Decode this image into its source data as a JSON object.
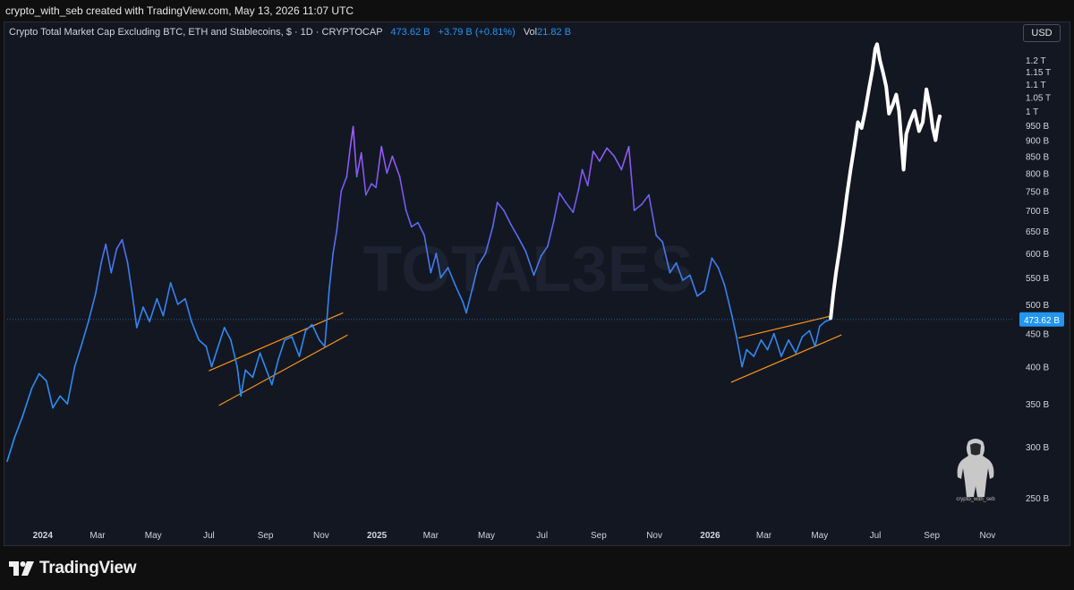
{
  "header": {
    "credit": "crypto_with_seb created with TradingView.com, May 13, 2026 11:07 UTC"
  },
  "legend": {
    "symbol": "Crypto Total Market Cap Excluding BTC, ETH and Stablecoins, $ · 1D · CRYPTOCAP",
    "last": "473.62 B",
    "change": "+3.79 B (+0.81%)",
    "vol_label": "Vol",
    "vol_value": "21.82 B"
  },
  "currency_button": "USD",
  "watermark": "TOTAL3ES",
  "avatar_caption": "crypto_with_seb",
  "footer": {
    "brand": "TradingView"
  },
  "colors": {
    "background": "#131722",
    "line": "#2196f3",
    "line_peak": "#9b59ff",
    "projection": "#ffffff",
    "channel": "#f7931a",
    "accent_label": "#2196f3"
  },
  "chart_data": {
    "type": "line",
    "title": "Crypto Total Market Cap Excluding BTC, ETH and Stablecoins",
    "xlabel": "",
    "ylabel": "",
    "y_scale": "log",
    "ylim": [
      230,
      1300
    ],
    "xlim": [
      "2023-11-23",
      "2026-11-30"
    ],
    "grid": false,
    "x_ticks": [
      {
        "date": "2024-01-01",
        "label": "2024",
        "bold": true
      },
      {
        "date": "2024-03-01",
        "label": "Mar"
      },
      {
        "date": "2024-05-01",
        "label": "May"
      },
      {
        "date": "2024-07-01",
        "label": "Jul"
      },
      {
        "date": "2024-09-01",
        "label": "Sep"
      },
      {
        "date": "2024-11-01",
        "label": "Nov"
      },
      {
        "date": "2025-01-01",
        "label": "2025",
        "bold": true
      },
      {
        "date": "2025-03-01",
        "label": "Mar"
      },
      {
        "date": "2025-05-01",
        "label": "May"
      },
      {
        "date": "2025-07-01",
        "label": "Jul"
      },
      {
        "date": "2025-09-01",
        "label": "Sep"
      },
      {
        "date": "2025-11-01",
        "label": "Nov"
      },
      {
        "date": "2026-01-01",
        "label": "2026",
        "bold": true
      },
      {
        "date": "2026-03-01",
        "label": "Mar"
      },
      {
        "date": "2026-05-01",
        "label": "May"
      },
      {
        "date": "2026-07-01",
        "label": "Jul"
      },
      {
        "date": "2026-09-01",
        "label": "Sep"
      },
      {
        "date": "2026-11-01",
        "label": "Nov"
      }
    ],
    "y_ticks": [
      {
        "value": 250,
        "label": "250 B"
      },
      {
        "value": 300,
        "label": "300 B"
      },
      {
        "value": 350,
        "label": "350 B"
      },
      {
        "value": 400,
        "label": "400 B"
      },
      {
        "value": 450,
        "label": "450 B"
      },
      {
        "value": 500,
        "label": "500 B"
      },
      {
        "value": 550,
        "label": "550 B"
      },
      {
        "value": 600,
        "label": "600 B"
      },
      {
        "value": 650,
        "label": "650 B"
      },
      {
        "value": 700,
        "label": "700 B"
      },
      {
        "value": 750,
        "label": "750 B"
      },
      {
        "value": 800,
        "label": "800 B"
      },
      {
        "value": 850,
        "label": "850 B"
      },
      {
        "value": 900,
        "label": "900 B"
      },
      {
        "value": 950,
        "label": "950 B"
      },
      {
        "value": 1000,
        "label": "1 T"
      },
      {
        "value": 1050,
        "label": "1.05 T"
      },
      {
        "value": 1100,
        "label": "1.1 T"
      },
      {
        "value": 1150,
        "label": "1.15 T"
      },
      {
        "value": 1200,
        "label": "1.2 T"
      }
    ],
    "last_price": {
      "value": 473.62,
      "label": "473.62 B"
    },
    "series": [
      {
        "role": "history",
        "points": [
          [
            "2023-11-23",
            285
          ],
          [
            "2023-12-01",
            310
          ],
          [
            "2023-12-10",
            335
          ],
          [
            "2023-12-20",
            370
          ],
          [
            "2023-12-28",
            390
          ],
          [
            "2024-01-05",
            380
          ],
          [
            "2024-01-12",
            345
          ],
          [
            "2024-01-20",
            360
          ],
          [
            "2024-01-28",
            350
          ],
          [
            "2024-02-05",
            400
          ],
          [
            "2024-02-12",
            430
          ],
          [
            "2024-02-20",
            470
          ],
          [
            "2024-02-28",
            520
          ],
          [
            "2024-03-05",
            580
          ],
          [
            "2024-03-10",
            620
          ],
          [
            "2024-03-16",
            560
          ],
          [
            "2024-03-22",
            610
          ],
          [
            "2024-03-28",
            630
          ],
          [
            "2024-04-03",
            580
          ],
          [
            "2024-04-08",
            520
          ],
          [
            "2024-04-13",
            460
          ],
          [
            "2024-04-20",
            495
          ],
          [
            "2024-04-27",
            470
          ],
          [
            "2024-05-05",
            510
          ],
          [
            "2024-05-12",
            480
          ],
          [
            "2024-05-20",
            540
          ],
          [
            "2024-05-28",
            500
          ],
          [
            "2024-06-05",
            510
          ],
          [
            "2024-06-12",
            470
          ],
          [
            "2024-06-20",
            440
          ],
          [
            "2024-06-28",
            430
          ],
          [
            "2024-07-04",
            400
          ],
          [
            "2024-07-10",
            425
          ],
          [
            "2024-07-18",
            460
          ],
          [
            "2024-07-25",
            440
          ],
          [
            "2024-08-01",
            400
          ],
          [
            "2024-08-05",
            360
          ],
          [
            "2024-08-10",
            395
          ],
          [
            "2024-08-18",
            385
          ],
          [
            "2024-08-26",
            420
          ],
          [
            "2024-09-02",
            395
          ],
          [
            "2024-09-08",
            375
          ],
          [
            "2024-09-15",
            410
          ],
          [
            "2024-09-22",
            440
          ],
          [
            "2024-09-30",
            445
          ],
          [
            "2024-10-08",
            415
          ],
          [
            "2024-10-15",
            455
          ],
          [
            "2024-10-22",
            465
          ],
          [
            "2024-10-30",
            440
          ],
          [
            "2024-11-05",
            430
          ],
          [
            "2024-11-10",
            530
          ],
          [
            "2024-11-14",
            600
          ],
          [
            "2024-11-18",
            650
          ],
          [
            "2024-11-23",
            750
          ],
          [
            "2024-11-29",
            790
          ],
          [
            "2024-12-03",
            880
          ],
          [
            "2024-12-06",
            945
          ],
          [
            "2024-12-10",
            790
          ],
          [
            "2024-12-15",
            860
          ],
          [
            "2024-12-20",
            740
          ],
          [
            "2024-12-26",
            770
          ],
          [
            "2024-12-31",
            760
          ],
          [
            "2025-01-06",
            880
          ],
          [
            "2025-01-12",
            800
          ],
          [
            "2025-01-18",
            850
          ],
          [
            "2025-01-26",
            790
          ],
          [
            "2025-02-02",
            700
          ],
          [
            "2025-02-08",
            660
          ],
          [
            "2025-02-15",
            670
          ],
          [
            "2025-02-22",
            640
          ],
          [
            "2025-03-01",
            560
          ],
          [
            "2025-03-07",
            600
          ],
          [
            "2025-03-12",
            550
          ],
          [
            "2025-03-20",
            570
          ],
          [
            "2025-03-28",
            535
          ],
          [
            "2025-04-05",
            505
          ],
          [
            "2025-04-09",
            485
          ],
          [
            "2025-04-15",
            525
          ],
          [
            "2025-04-22",
            575
          ],
          [
            "2025-04-30",
            600
          ],
          [
            "2025-05-08",
            660
          ],
          [
            "2025-05-13",
            720
          ],
          [
            "2025-05-20",
            700
          ],
          [
            "2025-05-28",
            665
          ],
          [
            "2025-06-05",
            635
          ],
          [
            "2025-06-13",
            605
          ],
          [
            "2025-06-22",
            555
          ],
          [
            "2025-06-30",
            595
          ],
          [
            "2025-07-07",
            615
          ],
          [
            "2025-07-14",
            675
          ],
          [
            "2025-07-20",
            745
          ],
          [
            "2025-07-27",
            720
          ],
          [
            "2025-08-04",
            695
          ],
          [
            "2025-08-10",
            755
          ],
          [
            "2025-08-14",
            810
          ],
          [
            "2025-08-20",
            765
          ],
          [
            "2025-08-26",
            865
          ],
          [
            "2025-09-02",
            835
          ],
          [
            "2025-09-10",
            875
          ],
          [
            "2025-09-18",
            850
          ],
          [
            "2025-09-26",
            810
          ],
          [
            "2025-10-04",
            880
          ],
          [
            "2025-10-10",
            700
          ],
          [
            "2025-10-18",
            715
          ],
          [
            "2025-10-26",
            740
          ],
          [
            "2025-11-03",
            640
          ],
          [
            "2025-11-10",
            625
          ],
          [
            "2025-11-18",
            560
          ],
          [
            "2025-11-25",
            580
          ],
          [
            "2025-12-02",
            545
          ],
          [
            "2025-12-10",
            555
          ],
          [
            "2025-12-18",
            515
          ],
          [
            "2025-12-26",
            525
          ],
          [
            "2026-01-03",
            590
          ],
          [
            "2026-01-10",
            570
          ],
          [
            "2026-01-17",
            535
          ],
          [
            "2026-01-25",
            480
          ],
          [
            "2026-01-30",
            445
          ],
          [
            "2026-02-05",
            400
          ],
          [
            "2026-02-10",
            425
          ],
          [
            "2026-02-18",
            415
          ],
          [
            "2026-02-26",
            440
          ],
          [
            "2026-03-05",
            425
          ],
          [
            "2026-03-12",
            450
          ],
          [
            "2026-03-20",
            415
          ],
          [
            "2026-03-28",
            440
          ],
          [
            "2026-04-05",
            420
          ],
          [
            "2026-04-12",
            445
          ],
          [
            "2026-04-20",
            455
          ],
          [
            "2026-04-26",
            430
          ],
          [
            "2026-05-01",
            462
          ],
          [
            "2026-05-07",
            470
          ],
          [
            "2026-05-13",
            473.62
          ]
        ]
      },
      {
        "role": "projection",
        "points": [
          [
            "2026-05-13",
            473.62
          ],
          [
            "2026-05-16",
            520
          ],
          [
            "2026-05-19",
            560
          ],
          [
            "2026-05-23",
            610
          ],
          [
            "2026-05-27",
            670
          ],
          [
            "2026-05-31",
            740
          ],
          [
            "2026-06-04",
            810
          ],
          [
            "2026-06-08",
            880
          ],
          [
            "2026-06-12",
            960
          ],
          [
            "2026-06-16",
            940
          ],
          [
            "2026-06-20",
            1000
          ],
          [
            "2026-06-24",
            1080
          ],
          [
            "2026-06-28",
            1160
          ],
          [
            "2026-07-01",
            1250
          ],
          [
            "2026-07-03",
            1270
          ],
          [
            "2026-07-06",
            1200
          ],
          [
            "2026-07-10",
            1140
          ],
          [
            "2026-07-13",
            1090
          ],
          [
            "2026-07-16",
            990
          ],
          [
            "2026-07-20",
            1020
          ],
          [
            "2026-07-24",
            1060
          ],
          [
            "2026-07-27",
            1000
          ],
          [
            "2026-07-29",
            920
          ],
          [
            "2026-08-01",
            810
          ],
          [
            "2026-08-04",
            920
          ],
          [
            "2026-08-08",
            960
          ],
          [
            "2026-08-13",
            1000
          ],
          [
            "2026-08-18",
            930
          ],
          [
            "2026-08-22",
            960
          ],
          [
            "2026-08-26",
            1080
          ],
          [
            "2026-08-30",
            1010
          ],
          [
            "2026-09-02",
            940
          ],
          [
            "2026-09-05",
            900
          ],
          [
            "2026-09-08",
            960
          ],
          [
            "2026-09-10",
            985
          ]
        ]
      }
    ],
    "annotations": [
      {
        "type": "trend_channel",
        "lines": [
          {
            "from": [
              "2024-07-01",
              394
            ],
            "to": [
              "2024-11-25",
              485
            ]
          },
          {
            "from": [
              "2024-07-12",
              348
            ],
            "to": [
              "2024-11-30",
              448
            ]
          }
        ]
      },
      {
        "type": "trend_channel",
        "lines": [
          {
            "from": [
              "2026-02-01",
              443
            ],
            "to": [
              "2026-05-15",
              480
            ]
          },
          {
            "from": [
              "2026-01-24",
              378
            ],
            "to": [
              "2026-05-25",
              448
            ]
          }
        ]
      }
    ]
  }
}
